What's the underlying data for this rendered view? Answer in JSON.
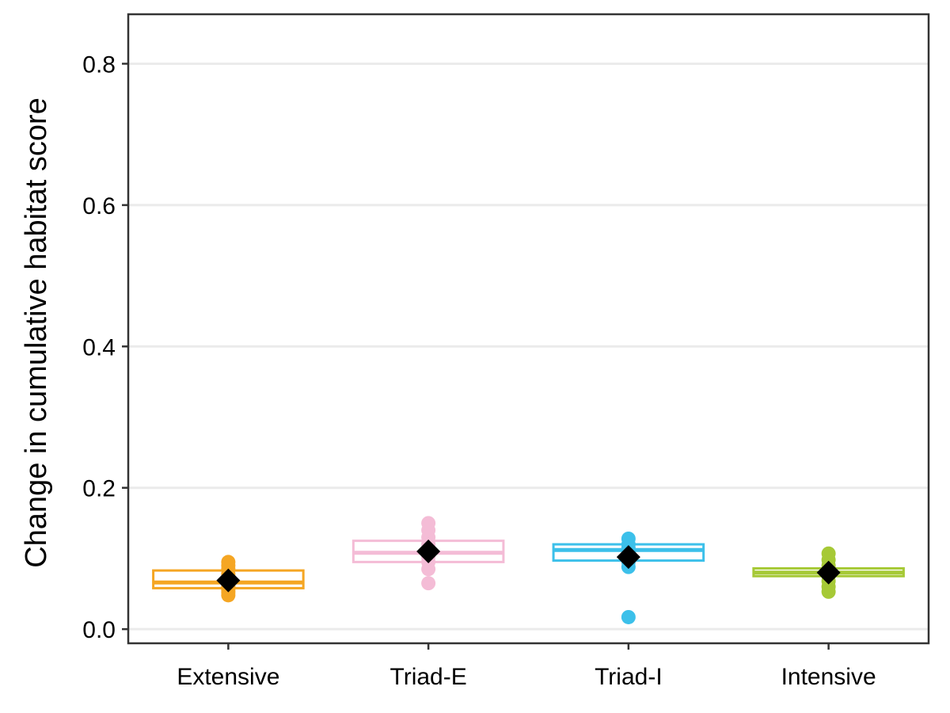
{
  "chart_data": {
    "type": "boxplot",
    "title": "",
    "xlabel": "",
    "ylabel": "Change in cumulative habitat score",
    "ylim": [
      -0.02,
      0.87
    ],
    "yticks": [
      0.0,
      0.2,
      0.4,
      0.6,
      0.8
    ],
    "ytick_labels": [
      "0.0",
      "0.2",
      "0.4",
      "0.6",
      "0.8"
    ],
    "grid": "horizontal major gridlines",
    "legend": "none",
    "categories": [
      "Extensive",
      "Triad-E",
      "Triad-I",
      "Intensive"
    ],
    "groups": [
      {
        "category": "Extensive",
        "color": "#F5A623",
        "q1": 0.058,
        "median": 0.066,
        "q3": 0.083,
        "mean": 0.069,
        "points": [
          0.048,
          0.052,
          0.055,
          0.06,
          0.064,
          0.068,
          0.072,
          0.078,
          0.085,
          0.09,
          0.095
        ]
      },
      {
        "category": "Triad-E",
        "color": "#F4BCD6",
        "q1": 0.095,
        "median": 0.108,
        "q3": 0.125,
        "mean": 0.11,
        "points": [
          0.065,
          0.085,
          0.095,
          0.102,
          0.108,
          0.114,
          0.12,
          0.13,
          0.14,
          0.15
        ]
      },
      {
        "category": "Triad-I",
        "color": "#3CC0EA",
        "q1": 0.097,
        "median": 0.112,
        "q3": 0.12,
        "mean": 0.102,
        "points": [
          0.017,
          0.088,
          0.095,
          0.1,
          0.105,
          0.11,
          0.115,
          0.12,
          0.128
        ]
      },
      {
        "category": "Intensive",
        "color": "#A6C936",
        "q1": 0.075,
        "median": 0.08,
        "q3": 0.086,
        "mean": 0.08,
        "points": [
          0.053,
          0.06,
          0.068,
          0.075,
          0.08,
          0.085,
          0.09,
          0.098,
          0.107
        ]
      }
    ],
    "mean_marker": {
      "shape": "diamond",
      "color": "#000000"
    }
  }
}
